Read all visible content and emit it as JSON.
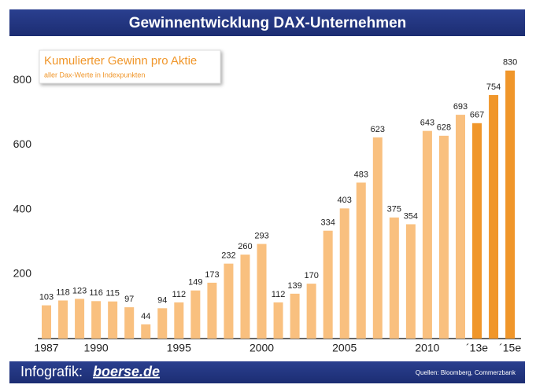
{
  "chart_data": {
    "type": "bar",
    "title": "Gewinnentwicklung DAX-Unternehmen",
    "legend_title": "Kumulierter Gewinn pro Aktie",
    "legend_subtitle": "aller Dax-Werte in Indexpunkten",
    "brand_prefix": "Infografik:",
    "brand": "boerse.de",
    "source": "Quellen: Bloomberg, Commerzbank",
    "categories": [
      "1987",
      null,
      null,
      "1990",
      null,
      null,
      null,
      null,
      "1995",
      null,
      null,
      null,
      null,
      "2000",
      null,
      null,
      null,
      null,
      "2005",
      null,
      null,
      null,
      null,
      "2010",
      null,
      null,
      "´13e",
      null,
      "´15e"
    ],
    "values": [
      103,
      118,
      123,
      116,
      115,
      97,
      44,
      94,
      112,
      149,
      173,
      232,
      260,
      293,
      112,
      139,
      170,
      334,
      403,
      483,
      623,
      375,
      354,
      643,
      628,
      693,
      667,
      754,
      830
    ],
    "colors": [
      "#f9c07f",
      "#f9c07f",
      "#f9c07f",
      "#f9c07f",
      "#f9c07f",
      "#f9c07f",
      "#f9c07f",
      "#f9c07f",
      "#f9c07f",
      "#f9c07f",
      "#f9c07f",
      "#f9c07f",
      "#f9c07f",
      "#f9c07f",
      "#f9c07f",
      "#f9c07f",
      "#f9c07f",
      "#f9c07f",
      "#f9c07f",
      "#f9c07f",
      "#f9c07f",
      "#f9c07f",
      "#f9c07f",
      "#f9c07f",
      "#f9c07f",
      "#f9c07f",
      "#f0962a",
      "#f0962a",
      "#f0962a"
    ],
    "ylim": [
      0,
      900
    ],
    "yticks": [
      200,
      400,
      600,
      800
    ]
  }
}
